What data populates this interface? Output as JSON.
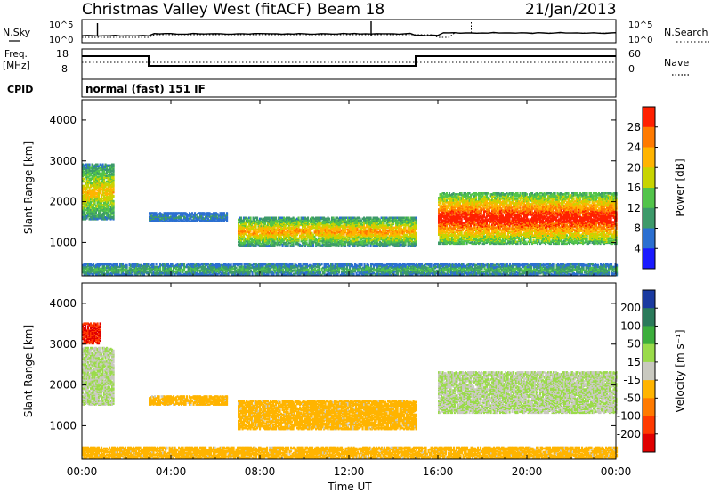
{
  "header": {
    "station": "Christmas Valley West (fitACF)",
    "beam": "Beam 18",
    "date": "21/Jan/2013"
  },
  "nsky_panel": {
    "left_label": "N.Sky",
    "left_ticks": [
      "10^5",
      "10^0"
    ],
    "right_label": "N.Search",
    "right_ticks": [
      "10^5",
      "10^0"
    ]
  },
  "freq_panel": {
    "left_label_1": "Freq.",
    "left_label_2": "[MHz]",
    "left_ticks": [
      "18",
      "8"
    ],
    "right_label": "Nave",
    "right_ticks": [
      "60",
      "0"
    ]
  },
  "cpid_panel": {
    "label": "CPID",
    "value": "normal (fast) 151 IF"
  },
  "chart_data": [
    {
      "type": "heatmap",
      "name": "power",
      "ylabel": "Slant Range [km]",
      "xlabel": "",
      "x_ticks": [
        "00:00",
        "04:00",
        "08:00",
        "12:00",
        "16:00",
        "20:00",
        "00:00"
      ],
      "x_range_hours": [
        0,
        24
      ],
      "y_ticks": [
        "1000",
        "2000",
        "3000",
        "4000"
      ],
      "y_range_km": [
        180,
        4500
      ],
      "colorbar_label": "Power [dB]",
      "colorbar_ticks": [
        "4",
        "8",
        "12",
        "16",
        "20",
        "24",
        "28"
      ],
      "colorbar_colors": [
        "#1a1aff",
        "#2b6fd1",
        "#3d9a6a",
        "#52c44a",
        "#c8d400",
        "#ffb400",
        "#ff7a00",
        "#ff2000"
      ],
      "features": [
        {
          "t_start": 0.0,
          "t_end": 1.4,
          "range_start": 1550,
          "range_end": 2900,
          "level_db": 18
        },
        {
          "t_start": 3.0,
          "t_end": 6.5,
          "range_start": 1500,
          "range_end": 1700,
          "level_db": 6
        },
        {
          "t_start": 7.0,
          "t_end": 15.0,
          "range_start": 900,
          "range_end": 1600,
          "level_db": 20
        },
        {
          "t_start": 16.0,
          "t_end": 24.0,
          "range_start": 950,
          "range_end": 2200,
          "level_db": 28
        },
        {
          "t_start": 0.0,
          "t_end": 24.0,
          "range_start": 180,
          "range_end": 450,
          "level_db": 10
        }
      ]
    },
    {
      "type": "heatmap",
      "name": "velocity",
      "ylabel": "Slant Range [km]",
      "xlabel": "Time UT",
      "x_ticks": [
        "00:00",
        "04:00",
        "08:00",
        "12:00",
        "16:00",
        "20:00",
        "00:00"
      ],
      "x_range_hours": [
        0,
        24
      ],
      "y_ticks": [
        "1000",
        "2000",
        "3000",
        "4000"
      ],
      "y_range_km": [
        180,
        4500
      ],
      "colorbar_label": "Velocity [m s⁻¹]",
      "colorbar_ticks": [
        "200",
        "100",
        "50",
        "15",
        "-15",
        "-50",
        "-100",
        "-200"
      ],
      "colorbar_colors": [
        "#1a3aa0",
        "#2a7a5a",
        "#3cae3c",
        "#9adb4a",
        "#c9c9c0",
        "#ffb400",
        "#ff7a00",
        "#ff3a00",
        "#e00000"
      ],
      "features": [
        {
          "t_start": 0.0,
          "t_end": 1.4,
          "range_start": 1500,
          "range_end": 2900,
          "velocity": 0
        },
        {
          "t_start": 0.0,
          "t_end": 0.8,
          "range_start": 3000,
          "range_end": 3500,
          "velocity": -200
        },
        {
          "t_start": 3.0,
          "t_end": 6.5,
          "range_start": 1500,
          "range_end": 1700,
          "velocity": -50
        },
        {
          "t_start": 7.0,
          "t_end": 15.0,
          "range_start": 900,
          "range_end": 1600,
          "velocity": -50
        },
        {
          "t_start": 16.0,
          "t_end": 24.0,
          "range_start": 1300,
          "range_end": 2300,
          "velocity": 0
        },
        {
          "t_start": 0.0,
          "t_end": 24.0,
          "range_start": 180,
          "range_end": 450,
          "velocity": -50
        }
      ]
    }
  ]
}
